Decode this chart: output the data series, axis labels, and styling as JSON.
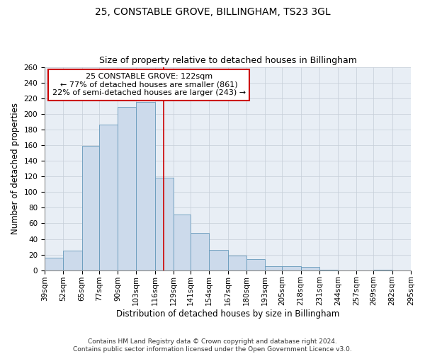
{
  "title": "25, CONSTABLE GROVE, BILLINGHAM, TS23 3GL",
  "subtitle": "Size of property relative to detached houses in Billingham",
  "xlabel": "Distribution of detached houses by size in Billingham",
  "ylabel": "Number of detached properties",
  "bin_labels": [
    "39sqm",
    "52sqm",
    "65sqm",
    "77sqm",
    "90sqm",
    "103sqm",
    "116sqm",
    "129sqm",
    "141sqm",
    "154sqm",
    "167sqm",
    "180sqm",
    "193sqm",
    "205sqm",
    "218sqm",
    "231sqm",
    "244sqm",
    "257sqm",
    "269sqm",
    "282sqm",
    "295sqm"
  ],
  "bar_values": [
    16,
    25,
    159,
    186,
    209,
    215,
    118,
    71,
    48,
    26,
    19,
    14,
    5,
    5,
    4,
    1,
    0,
    0,
    1,
    0
  ],
  "bin_edges": [
    39,
    52,
    65,
    77,
    90,
    103,
    116,
    129,
    141,
    154,
    167,
    180,
    193,
    205,
    218,
    231,
    244,
    257,
    269,
    282,
    295
  ],
  "bar_color": "#ccdaeb",
  "bar_edge_color": "#6699bb",
  "vline_x": 122,
  "vline_color": "#cc0000",
  "annotation_title": "25 CONSTABLE GROVE: 122sqm",
  "annotation_line1": "← 77% of detached houses are smaller (861)",
  "annotation_line2": "22% of semi-detached houses are larger (243) →",
  "annotation_box_color": "#ffffff",
  "annotation_box_edge": "#cc0000",
  "ylim": [
    0,
    260
  ],
  "yticks": [
    0,
    20,
    40,
    60,
    80,
    100,
    120,
    140,
    160,
    180,
    200,
    220,
    240,
    260
  ],
  "footer1": "Contains HM Land Registry data © Crown copyright and database right 2024.",
  "footer2": "Contains public sector information licensed under the Open Government Licence v3.0.",
  "fig_bg_color": "#ffffff",
  "plot_bg_color": "#e8eef5",
  "grid_color": "#c5cdd8",
  "title_fontsize": 10,
  "subtitle_fontsize": 9,
  "axis_label_fontsize": 8.5,
  "tick_fontsize": 7.5,
  "footer_fontsize": 6.5,
  "ann_fontsize": 8
}
